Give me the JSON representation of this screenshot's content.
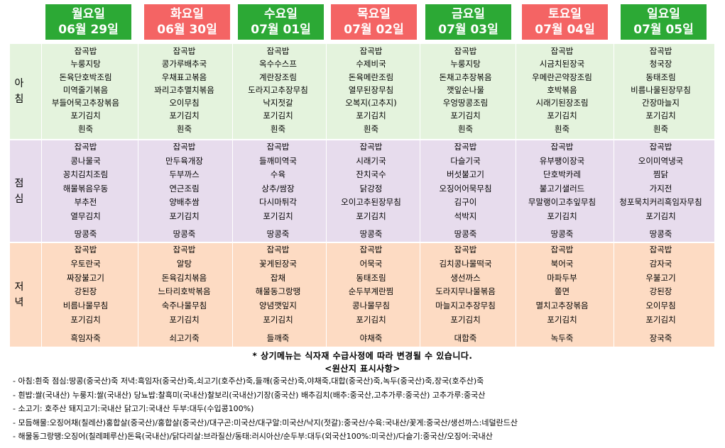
{
  "days": [
    {
      "name": "월요일",
      "date": "06월 29일",
      "color": "#2ca935"
    },
    {
      "name": "화요일",
      "date": "06월 30일",
      "color": "#f46464"
    },
    {
      "name": "수요일",
      "date": "07월 01일",
      "color": "#2ca935"
    },
    {
      "name": "목요일",
      "date": "07월 02일",
      "color": "#f46464"
    },
    {
      "name": "금요일",
      "date": "07월 03일",
      "color": "#2ca935"
    },
    {
      "name": "토요일",
      "date": "07월 04일",
      "color": "#f46464"
    },
    {
      "name": "일요일",
      "date": "07월 05일",
      "color": "#2ca935"
    }
  ],
  "meals": [
    {
      "label1": "아",
      "label2": "침",
      "color": "#e4f3dd"
    },
    {
      "label1": "점",
      "label2": "심",
      "color": "#e7dced"
    },
    {
      "label1": "저",
      "label2": "녁",
      "color": "#fddbc3"
    }
  ],
  "breakfast": [
    [
      "잡곡밥",
      "누룽지탕",
      "돈육단호박조림",
      "미역줄기볶음",
      "부들어묵고추장볶음",
      "포기김치",
      "흰죽"
    ],
    [
      "잡곡밥",
      "콩가루배추국",
      "우채표고볶음",
      "꽈리고추멸치볶음",
      "오이무침",
      "포기김치",
      "흰죽"
    ],
    [
      "잡곡밥",
      "옥수수스프",
      "계란장조림",
      "도라지고추장무침",
      "낙지젓갈",
      "포기김치",
      "흰죽"
    ],
    [
      "잡곡밥",
      "수제비국",
      "돈육메란조림",
      "열무된장무침",
      "오복지(고추지)",
      "포기김치",
      "흰죽"
    ],
    [
      "잡곡밥",
      "누룽지탕",
      "돈채고추장볶음",
      "깻잎순나물",
      "우엉땅콩조림",
      "포기김치",
      "흰죽"
    ],
    [
      "잡곡밥",
      "시금치된장국",
      "우메란곤약장조림",
      "호박볶음",
      "시래기된장조림",
      "포기김치",
      "흰죽"
    ],
    [
      "잡곡밥",
      "청국장",
      "동태조림",
      "비름나물된장무침",
      "간장마늘지",
      "포기김치",
      "흰죽"
    ]
  ],
  "lunch": [
    [
      "잡곡밥",
      "콩나물국",
      "꽁치김치조림",
      "해물볶음우동",
      "부추전",
      "열무김치",
      "땅콩죽"
    ],
    [
      "잡곡밥",
      "만두육개장",
      "두부까스",
      "연근조림",
      "양배추쌈",
      "포기김치",
      "땅콩죽"
    ],
    [
      "잡곡밥",
      "들깨미역국",
      "수육",
      "상추/쌈장",
      "다시마튀각",
      "포기김치",
      "땅콩죽"
    ],
    [
      "잡곡밥",
      "시래기국",
      "잔치국수",
      "닭강정",
      "오이고추된장무침",
      "포기김치",
      "땅콩죽"
    ],
    [
      "잡곡밥",
      "다슬기국",
      "버섯불고기",
      "오징어어묵무침",
      "김구이",
      "석박지",
      "땅콩죽"
    ],
    [
      "잡곡밥",
      "유부팽이장국",
      "단호박카레",
      "불고기샐러드",
      "무말랭이고추잎무침",
      "포기김치",
      "땅콩죽"
    ],
    [
      "잡곡밥",
      "오이미역냉국",
      "찜닭",
      "가지전",
      "청포묵치커리흑임자무침",
      "포기김치",
      "땅콩죽"
    ]
  ],
  "dinner": [
    [
      "잡곡밥",
      "우토란국",
      "짜장불고기",
      "강된장",
      "비름나물무침",
      "포기김치",
      "흑임자죽"
    ],
    [
      "잡곡밥",
      "알탕",
      "돈육김치볶음",
      "느타리호박볶음",
      "숙주나물무침",
      "포기김치",
      "쇠고기죽"
    ],
    [
      "잡곡밥",
      "꽃게된장국",
      "잡채",
      "해물동그랑땡",
      "양념깻잎지",
      "포기김치",
      "들깨죽"
    ],
    [
      "잡곡밥",
      "어묵국",
      "동태조림",
      "순두부계란찜",
      "콩나물무침",
      "포기김치",
      "야채죽"
    ],
    [
      "잡곡밥",
      "김치콩나물떡국",
      "생선까스",
      "도라지무나물볶음",
      "마늘지고추장무침",
      "포기김치",
      "대합죽"
    ],
    [
      "잡곡밥",
      "북어국",
      "마파두부",
      "쫄면",
      "멸치고추장볶음",
      "포기김치",
      "녹두죽"
    ],
    [
      "잡곡밥",
      "감자국",
      "우불고기",
      "강된장",
      "오이무침",
      "포기김치",
      "장국죽"
    ]
  ],
  "notice": "* 상기메뉴는 식자재 수급사정에 따라 변경될 수 있습니다.",
  "origin_title": "<원산지 표시사항>",
  "origin_lines": [
    "- 아침:흰죽 점심:땅콩(중국산)죽 저녁:흑임자(중국산)죽,쇠고기(호주산)죽,들깨(중국산)죽,야채죽,대합(중국산)죽,녹두(중국산)죽,장국(호주산)죽",
    "- 흰밥:쌀(국내산) 누룽지:쌀(국내산) 당뇨밥:찰흑미(국내산)찰보리(국내산)기장(중국산) 배추김치(배추:중국산,고추가루:중국산) 고추가루:중국산",
    "- 소고기: 호주산 돼지고기:국내산 닭고기:국내산 두부:대두(수입콩100%)",
    "- 모듬해물:오징어채(칠레산)홍합살(중국산)/홍합살(중국산)/대구곤:미국산/대구알:미국산/낙지(젓갈):중국산/수육:국내산/꽃게:중국산/생선까스:네덜란드산",
    "- 해물동그랑땡:오징어(칠레페루산)돈육(국내산)/닭다리살:브라질산/동태:러시아산/순두부:대두(외국산100%:미국산)/다슬기:중국산/오징어:국내산"
  ]
}
